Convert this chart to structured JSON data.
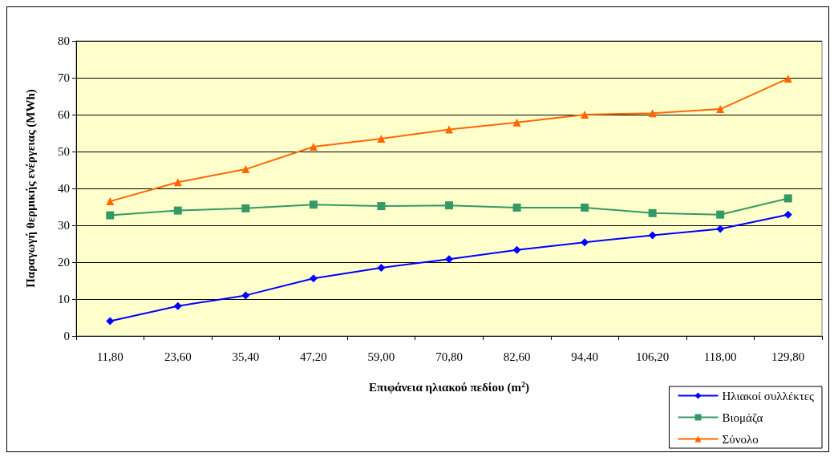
{
  "chart_data": {
    "type": "line",
    "xlabel": "Επιφάνεια ηλιακού πεδίου (m$^{2}$)",
    "ylabel": "Παραγωγή θερμικής ενέργειας (MWh)",
    "categories": [
      "11,80",
      "23,60",
      "35,40",
      "47,20",
      "59,00",
      "70,80",
      "82,60",
      "94,40",
      "106,20",
      "118,00",
      "129,80"
    ],
    "series": [
      {
        "name": "Ηλιακοί συλλέκτες",
        "color": "#0000ff",
        "marker": "diamond",
        "values": [
          4.0,
          8.1,
          11.0,
          15.6,
          18.5,
          20.8,
          23.3,
          25.4,
          27.3,
          29.0,
          32.9
        ]
      },
      {
        "name": "Βιομάζα",
        "color": "#339966",
        "marker": "square",
        "values": [
          32.7,
          34.0,
          34.6,
          35.6,
          35.2,
          35.4,
          34.8,
          34.8,
          33.3,
          32.9,
          37.3
        ]
      },
      {
        "name": "Σύνολο",
        "color": "#ff6600",
        "marker": "triangle",
        "values": [
          36.5,
          41.7,
          45.2,
          51.3,
          53.5,
          56.0,
          57.9,
          60.0,
          60.4,
          61.5,
          69.8
        ]
      }
    ],
    "ylim": [
      0,
      80
    ],
    "yticks": [
      0,
      10,
      20,
      30,
      40,
      50,
      60,
      70,
      80
    ],
    "grid": "y",
    "legend": "bottom right"
  }
}
